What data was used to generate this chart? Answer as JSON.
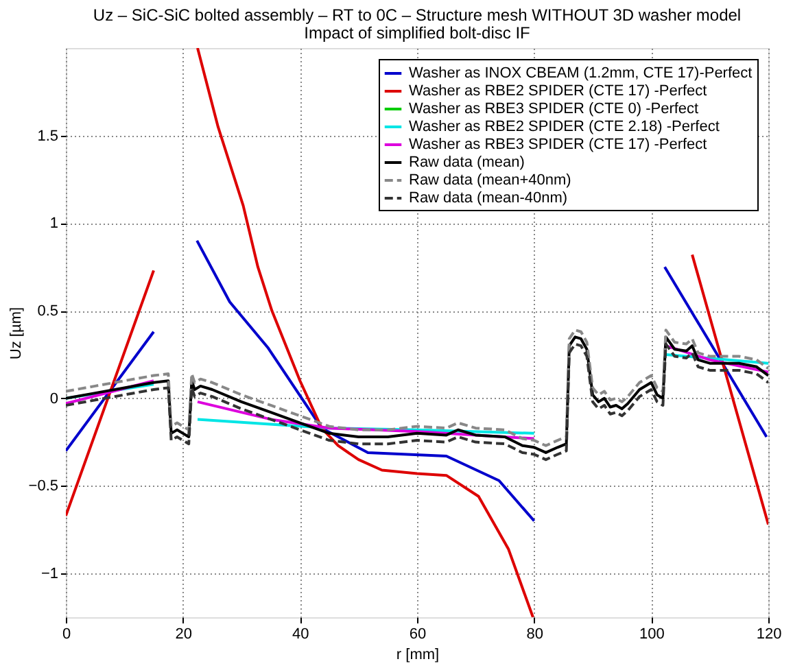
{
  "chart_data": {
    "type": "line",
    "title": "Uz – SiC-SiC bolted assembly – RT to 0C – Structure mesh WITHOUT 3D washer model",
    "subtitle": "Impact of simplified bolt-disc IF",
    "xlabel": "r [mm]",
    "ylabel": "Uz [µm]",
    "xlim": [
      0,
      120
    ],
    "xticks": [
      0,
      20,
      40,
      60,
      80,
      100,
      120
    ],
    "ylim": [
      -1.25,
      2
    ],
    "yticks": [
      -1,
      -0.5,
      0,
      0.5,
      1,
      1.5
    ],
    "grid": true,
    "legend": "top right",
    "series": [
      {
        "name": "Washer as INOX CBEAM (1.2mm, CTE 17)-Perfect",
        "color": "#0000cc",
        "line_style": "solid",
        "x": [
          0,
          15,
          18,
          22.4,
          28,
          34.5,
          43.7,
          51.6,
          65,
          74,
          80,
          90,
          102.3,
          119.7
        ],
        "values": [
          -0.3,
          0.38,
          null,
          0.9,
          0.55,
          0.29,
          -0.17,
          -0.31,
          -0.33,
          -0.47,
          -0.7,
          null,
          0.75,
          -0.22
        ]
      },
      {
        "name": "Washer as RBE2 SPIDER (CTE 17) -Perfect",
        "color": "#dd0000",
        "line_style": "solid",
        "x": [
          0,
          15,
          18,
          22.5,
          26,
          30.3,
          32.8,
          35.2,
          40,
          43.7,
          46.5,
          50,
          54,
          60,
          65,
          70.5,
          75.6,
          79.8,
          90,
          107,
          120
        ],
        "values": [
          -0.67,
          0.73,
          null,
          2.0,
          1.55,
          1.1,
          0.75,
          0.5,
          0.1,
          -0.17,
          -0.27,
          -0.35,
          -0.41,
          -0.43,
          -0.44,
          -0.56,
          -0.86,
          -1.25,
          null,
          0.82,
          -0.72
        ]
      },
      {
        "name": "Washer as RBE3 SPIDER (CTE  0) -Perfect",
        "color": "#00cc00",
        "line_style": "solid"
      },
      {
        "name": "Washer as RBE2 SPIDER (CTE 2.18) -Perfect",
        "color": "#00e5e5",
        "line_style": "solid",
        "x": [
          0,
          15,
          18,
          22.5,
          45,
          60,
          80,
          90,
          102.5,
          120
        ],
        "values": [
          0,
          0.08,
          null,
          -0.12,
          -0.17,
          -0.18,
          -0.2,
          null,
          0.25,
          0.2
        ]
      },
      {
        "name": "Washer as RBE3 SPIDER (CTE 17) -Perfect",
        "color": "#dd00dd",
        "line_style": "solid",
        "x": [
          0,
          15,
          18,
          22.5,
          35,
          45,
          60,
          80,
          90,
          102.5,
          110,
          120
        ],
        "values": [
          -0.03,
          0.1,
          null,
          -0.02,
          -0.12,
          -0.17,
          -0.19,
          -0.23,
          null,
          0.3,
          0.22,
          0.15
        ]
      },
      {
        "name": "Raw data (mean)",
        "color": "#000000",
        "line_style": "solid",
        "x": [
          0,
          5,
          10,
          15,
          17.5,
          18,
          19,
          20,
          21,
          21.5,
          22,
          23,
          25,
          30,
          35,
          40,
          45,
          50,
          55,
          60,
          65,
          67,
          70,
          75,
          78,
          80,
          82,
          84,
          85.5,
          86,
          87,
          88,
          89,
          90,
          91,
          92,
          93,
          94,
          95,
          96,
          98,
          100,
          101,
          102,
          102.5,
          104,
          106,
          107,
          108,
          110,
          112,
          115,
          118,
          120
        ],
        "values": [
          0,
          0.03,
          0.06,
          0.09,
          0.1,
          -0.2,
          -0.18,
          -0.2,
          -0.22,
          0.1,
          0.05,
          0.07,
          0.05,
          -0.02,
          -0.08,
          -0.14,
          -0.2,
          -0.22,
          -0.22,
          -0.2,
          -0.21,
          -0.18,
          -0.21,
          -0.22,
          -0.27,
          -0.28,
          -0.31,
          -0.28,
          -0.26,
          0.3,
          0.35,
          0.34,
          0.28,
          0.02,
          -0.02,
          0,
          -0.05,
          -0.04,
          -0.06,
          -0.03,
          0.05,
          0.09,
          0.02,
          0,
          0.35,
          0.28,
          0.27,
          0.3,
          0.22,
          0.2,
          0.2,
          0.2,
          0.18,
          0.13
        ]
      },
      {
        "name": "Raw data (mean+40nm)",
        "color": "#888888",
        "line_style": "dashed",
        "x": [
          0,
          5,
          10,
          15,
          17.5,
          18,
          19,
          20,
          21,
          21.5,
          22,
          23,
          25,
          30,
          35,
          40,
          45,
          50,
          55,
          60,
          65,
          67,
          70,
          75,
          78,
          80,
          82,
          84,
          85.5,
          86,
          87,
          88,
          89,
          90,
          91,
          92,
          93,
          94,
          95,
          96,
          98,
          100,
          101,
          102,
          102.5,
          104,
          106,
          107,
          108,
          110,
          112,
          115,
          118,
          120
        ],
        "values": [
          0.04,
          0.07,
          0.1,
          0.13,
          0.14,
          -0.16,
          -0.14,
          -0.16,
          -0.18,
          0.14,
          0.09,
          0.11,
          0.09,
          0.02,
          -0.04,
          -0.1,
          -0.16,
          -0.18,
          -0.18,
          -0.16,
          -0.17,
          -0.14,
          -0.17,
          -0.18,
          -0.23,
          -0.24,
          -0.27,
          -0.24,
          -0.22,
          0.34,
          0.39,
          0.38,
          0.32,
          0.06,
          0.02,
          0.04,
          -0.01,
          0,
          -0.02,
          0.01,
          0.09,
          0.13,
          0.06,
          0.04,
          0.39,
          0.32,
          0.31,
          0.34,
          0.26,
          0.24,
          0.24,
          0.24,
          0.22,
          0.17
        ]
      },
      {
        "name": "Raw data (mean-40nm)",
        "color": "#333333",
        "line_style": "dashed",
        "x": [
          0,
          5,
          10,
          15,
          17.5,
          18,
          19,
          20,
          21,
          21.5,
          22,
          23,
          25,
          30,
          35,
          40,
          45,
          50,
          55,
          60,
          65,
          67,
          70,
          75,
          78,
          80,
          82,
          84,
          85.5,
          86,
          87,
          88,
          89,
          90,
          91,
          92,
          93,
          94,
          95,
          96,
          98,
          100,
          101,
          102,
          102.5,
          104,
          106,
          107,
          108,
          110,
          112,
          115,
          118,
          120
        ],
        "values": [
          -0.04,
          -0.01,
          0.02,
          0.05,
          0.06,
          -0.24,
          -0.22,
          -0.24,
          -0.26,
          0.06,
          0.01,
          0.03,
          0.01,
          -0.06,
          -0.12,
          -0.18,
          -0.24,
          -0.26,
          -0.26,
          -0.24,
          -0.25,
          -0.22,
          -0.25,
          -0.26,
          -0.31,
          -0.32,
          -0.35,
          -0.32,
          -0.3,
          0.26,
          0.31,
          0.3,
          0.24,
          -0.02,
          -0.06,
          -0.04,
          -0.09,
          -0.08,
          -0.1,
          -0.07,
          0.01,
          0.05,
          -0.02,
          -0.04,
          0.31,
          0.24,
          0.23,
          0.26,
          0.18,
          0.16,
          0.16,
          0.16,
          0.14,
          0.09
        ]
      }
    ]
  }
}
